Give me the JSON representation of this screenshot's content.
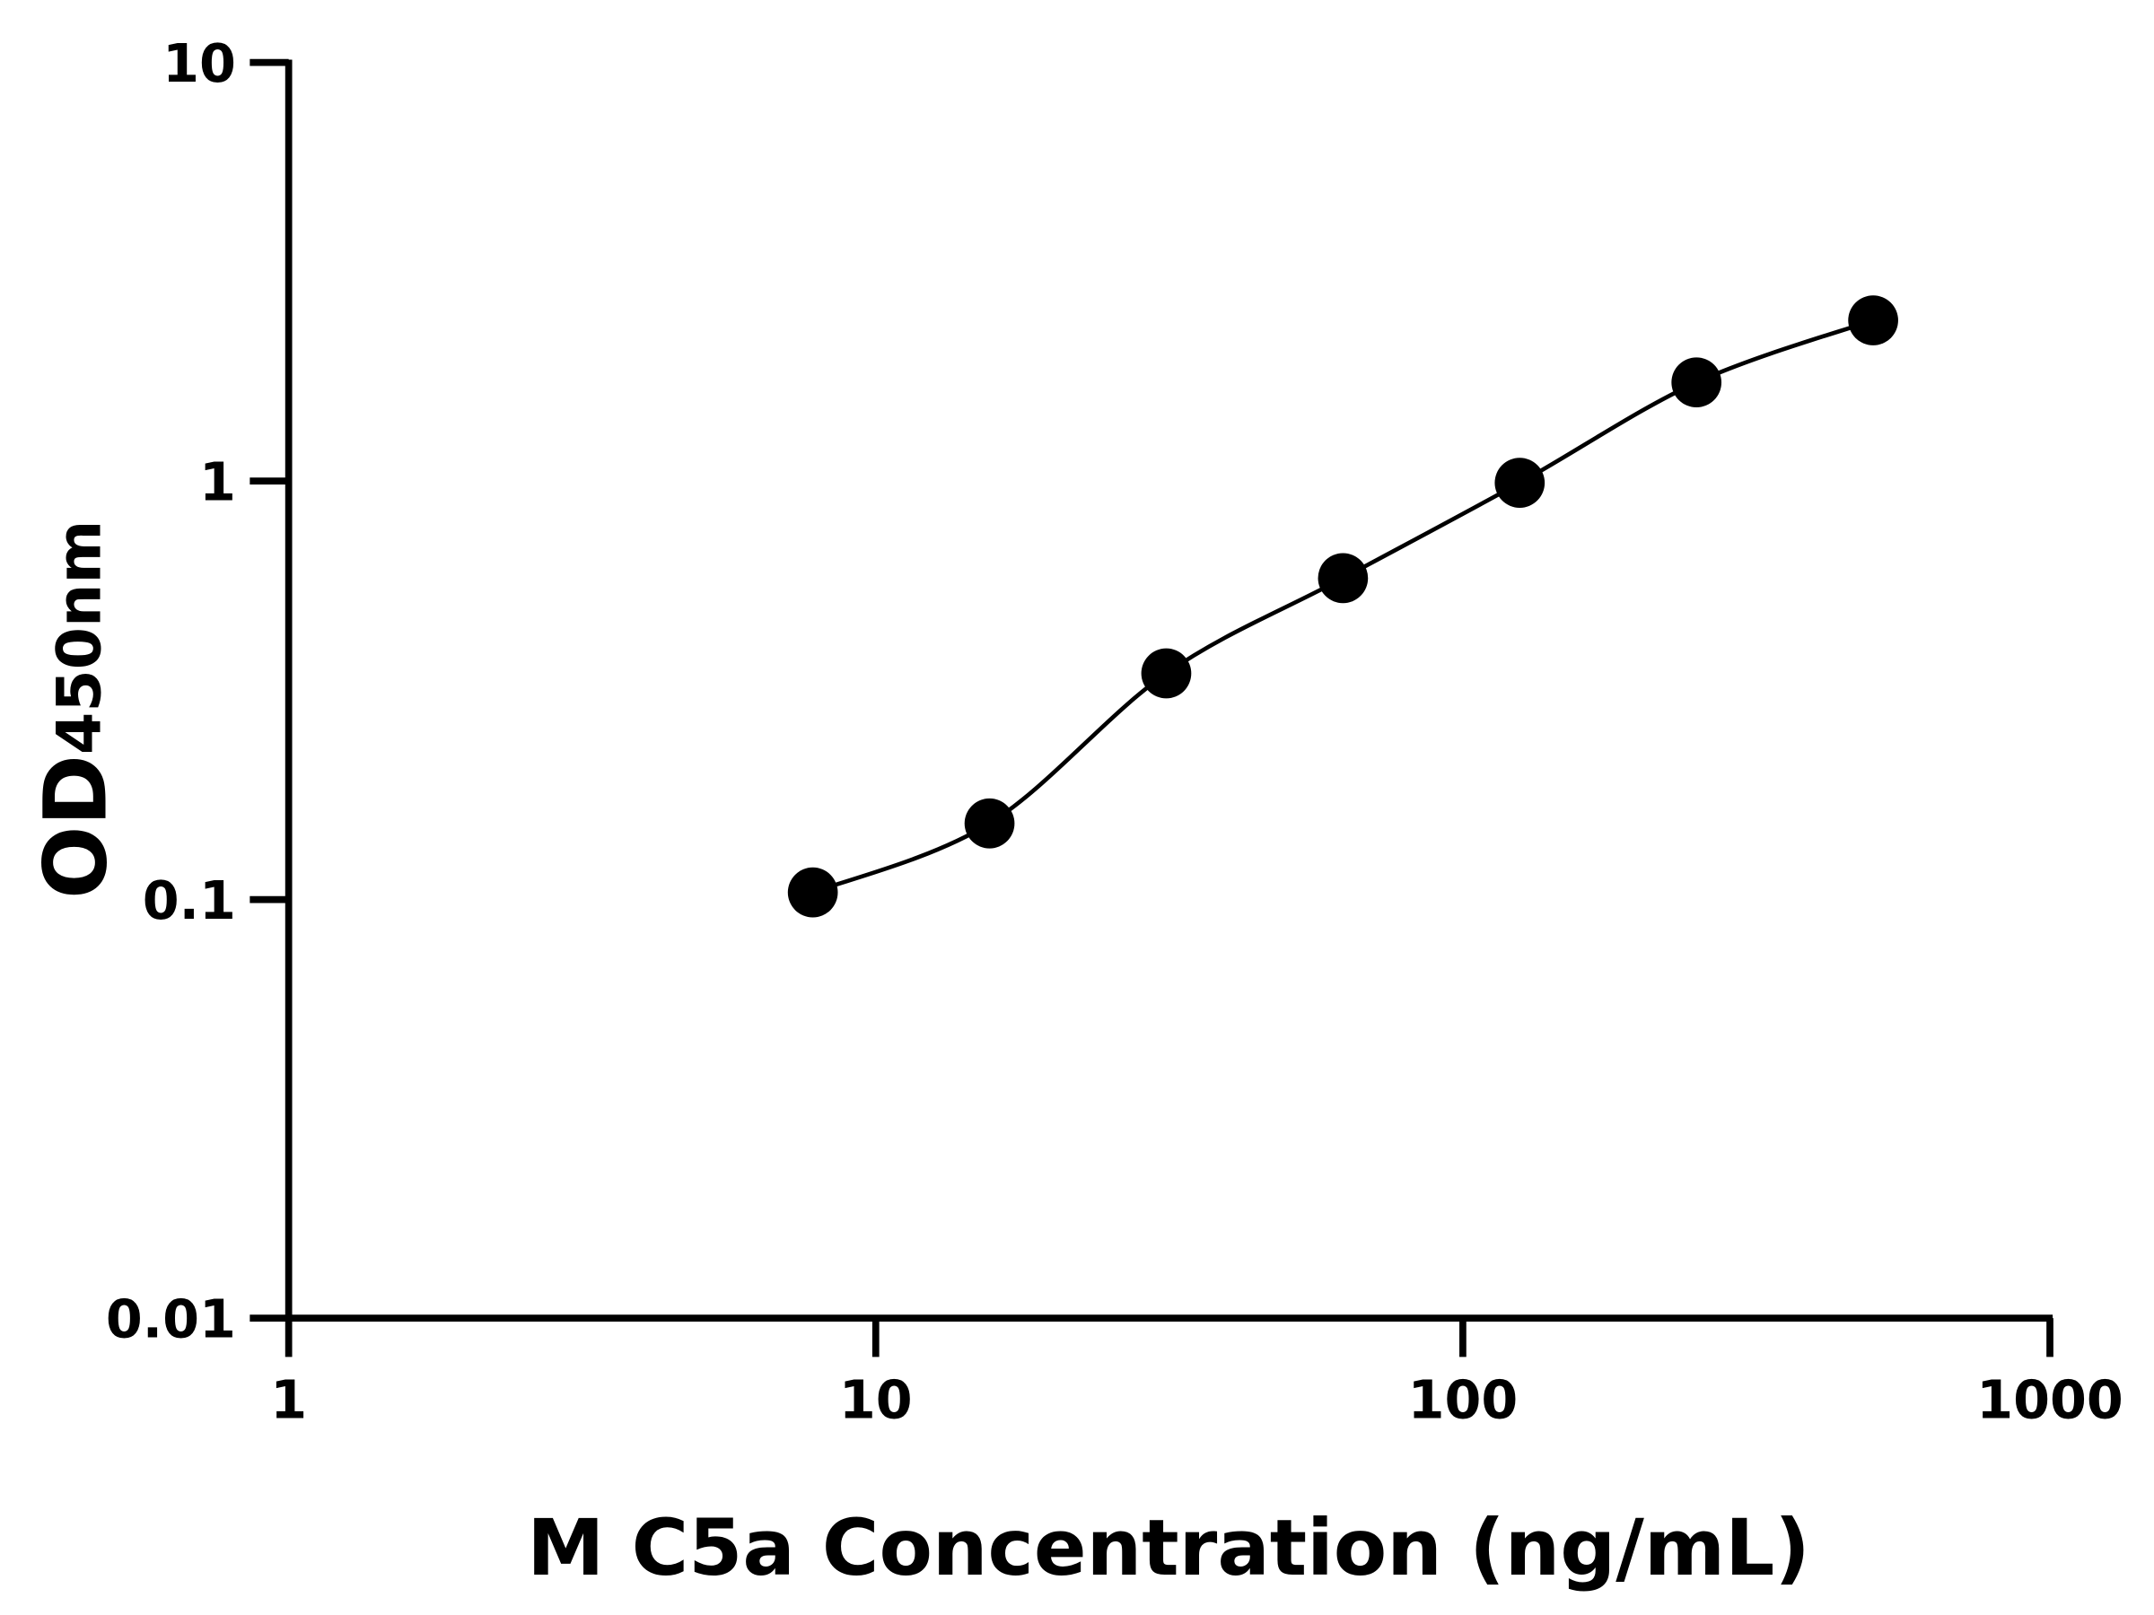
{
  "chart_data": {
    "type": "scatter",
    "title": "",
    "xlabel": "M C5a Concentration (ng/mL)",
    "ylabel_main": "OD",
    "ylabel_sub": "450nm",
    "x_scale": "log",
    "y_scale": "log",
    "xlim": [
      1,
      1000
    ],
    "ylim": [
      0.01,
      10
    ],
    "x_ticks": [
      "1",
      "10",
      "100",
      "1000"
    ],
    "y_ticks": [
      "0.01",
      "0.1",
      "1",
      "10"
    ],
    "grid": false,
    "fit_curve": true,
    "series": [
      {
        "x": [
          7.8125,
          15.625,
          31.25,
          62.5,
          125,
          250,
          500
        ],
        "y": [
          0.104,
          0.152,
          0.347,
          0.586,
          0.99,
          1.72,
          2.42
        ]
      }
    ],
    "colors": {
      "marker": "#000000",
      "line": "#000000"
    }
  }
}
